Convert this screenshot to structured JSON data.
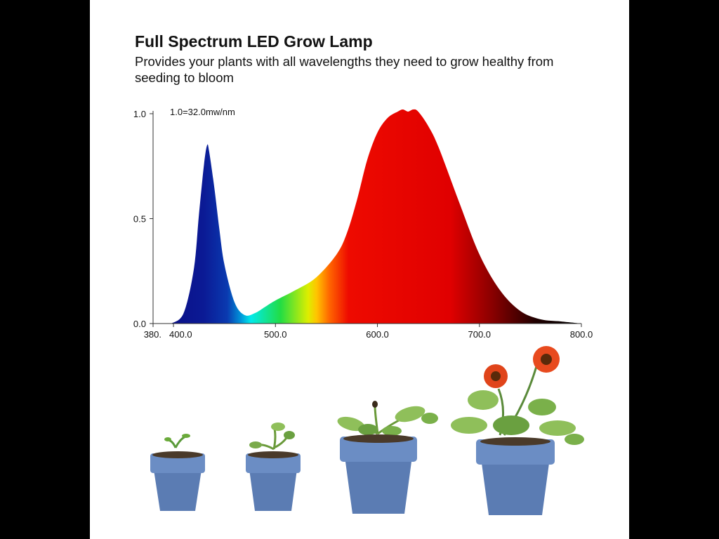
{
  "header": {
    "title": "Full Spectrum LED Grow Lamp",
    "subtitle": "Provides your plants with all wavelengths they need to grow healthy from seeding to bloom"
  },
  "chart_data": {
    "type": "area",
    "title": "",
    "xlabel": "",
    "ylabel": "",
    "xlim": [
      380,
      800
    ],
    "ylim": [
      0,
      1.0
    ],
    "annotation": "1.0=32.0mw/nm",
    "x_ticks": [
      {
        "value": 380,
        "label": "380."
      },
      {
        "value": 400,
        "label": "400.0"
      },
      {
        "value": 500,
        "label": "500.0"
      },
      {
        "value": 600,
        "label": "600.0"
      },
      {
        "value": 700,
        "label": "700.0"
      },
      {
        "value": 800,
        "label": "800.0"
      }
    ],
    "y_ticks": [
      {
        "value": 0.0,
        "label": "0.0"
      },
      {
        "value": 0.5,
        "label": "0.5"
      },
      {
        "value": 1.0,
        "label": "1.0"
      }
    ],
    "grid": false,
    "legend": "none",
    "x": [
      398,
      410,
      420,
      425,
      430,
      433,
      435,
      440,
      445,
      450,
      460,
      470,
      480,
      490,
      500,
      520,
      540,
      560,
      570,
      580,
      590,
      600,
      610,
      620,
      625,
      630,
      635,
      640,
      650,
      660,
      680,
      700,
      720,
      740,
      760,
      780,
      800
    ],
    "y": [
      0.0,
      0.05,
      0.26,
      0.52,
      0.76,
      0.85,
      0.82,
      0.65,
      0.45,
      0.28,
      0.1,
      0.04,
      0.05,
      0.08,
      0.11,
      0.16,
      0.22,
      0.33,
      0.43,
      0.59,
      0.78,
      0.91,
      0.98,
      1.01,
      1.02,
      1.01,
      1.02,
      1.01,
      0.94,
      0.84,
      0.58,
      0.33,
      0.16,
      0.06,
      0.02,
      0.01,
      0.0
    ],
    "colors": {
      "blue": "#0a1a8a",
      "cyan": "#00f0f0",
      "green": "#22cc22",
      "yellow": "#ffee00",
      "orange": "#ff8800",
      "red": "#ee0000",
      "dark": "#000000"
    }
  },
  "plants": [
    {
      "stage": "seedling"
    },
    {
      "stage": "young"
    },
    {
      "stage": "growing"
    },
    {
      "stage": "blooming"
    }
  ]
}
